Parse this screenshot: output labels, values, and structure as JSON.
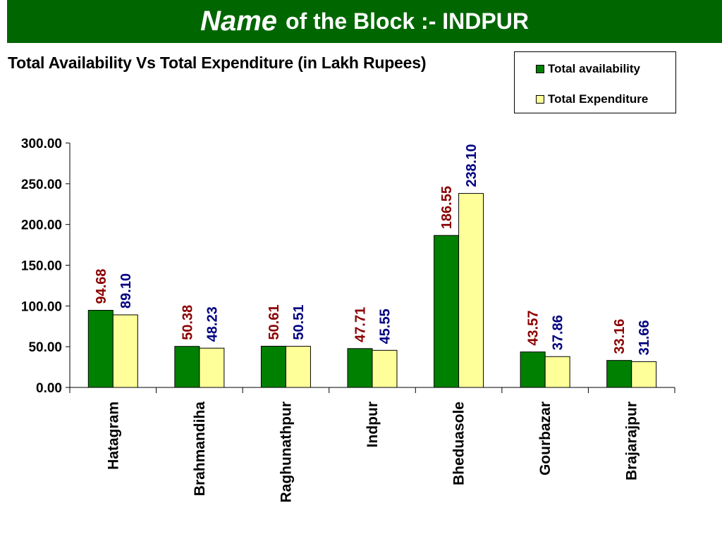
{
  "header": {
    "name_word": "Name",
    "rest": "of the Block :- INDPUR"
  },
  "colors": {
    "banner": "#006600",
    "availability": "#008000",
    "expenditure": "#FFFF99",
    "availability_label": "#8B0000",
    "expenditure_label": "#000080"
  },
  "chart_data": {
    "type": "bar",
    "title": "Total Availability Vs Total Expenditure (in Lakh Rupees)",
    "xlabel": "",
    "ylabel": "",
    "ylim": [
      0,
      300
    ],
    "yticks": [
      "0.00",
      "50.00",
      "100.00",
      "150.00",
      "200.00",
      "250.00",
      "300.00"
    ],
    "grid": false,
    "legend_position": "top-right",
    "categories": [
      "Hatagram",
      "Brahmandiha",
      "Raghunathpur",
      "Indpur",
      "Bheduasole",
      "Gourbazar",
      "Brajarajpur"
    ],
    "series": [
      {
        "name": "Total availability",
        "values": [
          94.68,
          50.38,
          50.61,
          47.71,
          186.55,
          43.57,
          33.16
        ],
        "labels": [
          "94.68",
          "50.38",
          "50.61",
          "47.71",
          "186.55",
          "43.57",
          "33.16"
        ]
      },
      {
        "name": "Total Expenditure",
        "values": [
          89.1,
          48.23,
          50.51,
          45.55,
          238.1,
          37.86,
          31.66
        ],
        "labels": [
          "89.10",
          "48.23",
          "50.51",
          "45.55",
          "238.10",
          "37.86",
          "31.66"
        ]
      }
    ]
  }
}
